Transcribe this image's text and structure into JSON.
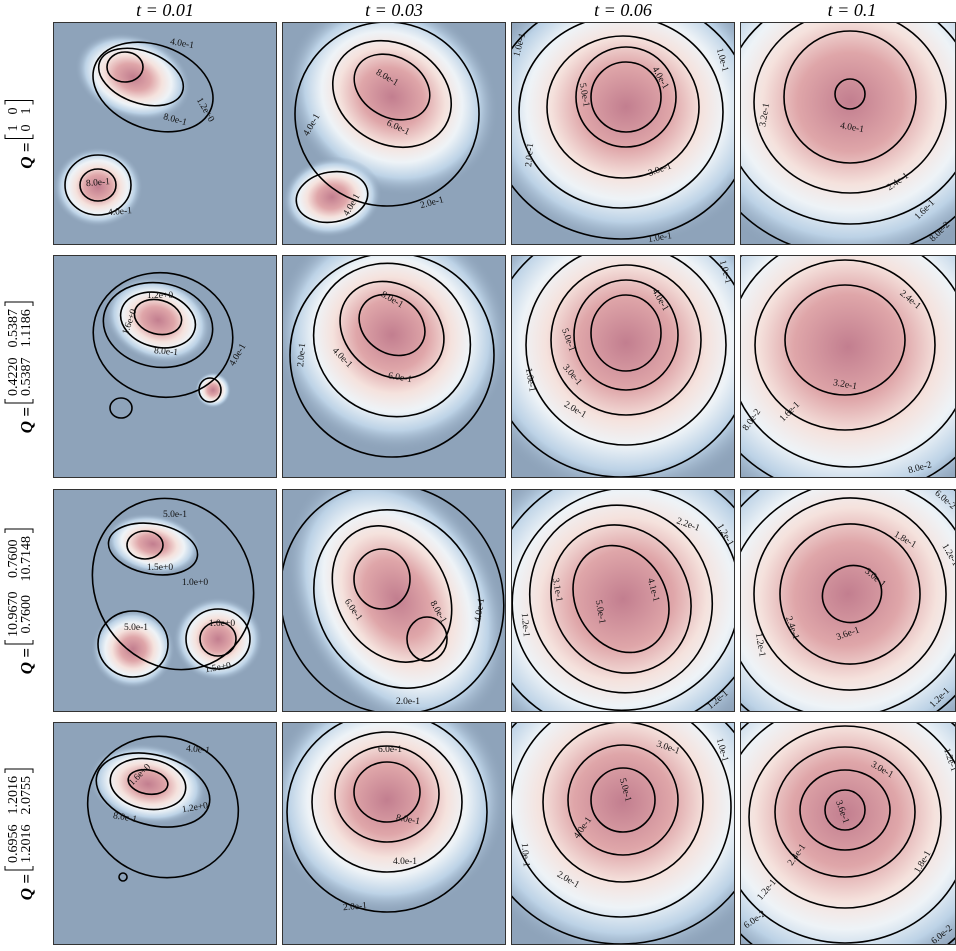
{
  "columns": [
    "t = 0.01",
    "t = 0.03",
    "t = 0.06",
    "t = 0.1"
  ],
  "rows": [
    {
      "label": "Q =",
      "matrix": [
        [
          "1",
          "0"
        ],
        [
          "0",
          "1"
        ]
      ],
      "panels": [
        {
          "contour_labels": [
            "4.0e-1",
            "1.2e+0",
            "8.0e-1",
            "8.0e-1",
            "4.0e-1"
          ]
        },
        {
          "contour_labels": [
            "8.0e-1",
            "6.0e-1",
            "4.0e-1",
            "4.0e-1",
            "2.0e-1"
          ]
        },
        {
          "contour_labels": [
            "1.0e-1",
            "5.0e-1",
            "4.0e-1",
            "2.0e-1",
            "3.0e-1",
            "1.0e-1",
            "1.0e-1"
          ]
        },
        {
          "contour_labels": [
            "3.2e-1",
            "4.0e-1",
            "2.4e-1",
            "1.6e-1",
            "8.0e-2"
          ]
        }
      ]
    },
    {
      "label": "Q =",
      "matrix": [
        [
          "0.4220",
          "0.5387"
        ],
        [
          "0.5387",
          "1.1186"
        ]
      ],
      "panels": [
        {
          "contour_labels": [
            "1.2e+0",
            "1.6e+0",
            "8.0e-1",
            "4.0e-1"
          ]
        },
        {
          "contour_labels": [
            "8.0e-1",
            "2.0e-1",
            "4.0e-1",
            "6.0e-1"
          ]
        },
        {
          "contour_labels": [
            "1.0e-1",
            "4.0e-1",
            "5.0e-1",
            "3.0e-1",
            "1.0e-1",
            "2.0e-1"
          ]
        },
        {
          "contour_labels": [
            "2.4e-1",
            "3.2e-1",
            "1.6e-1",
            "8.0e-2",
            "8.0e-2"
          ]
        }
      ]
    },
    {
      "label": "Q =",
      "matrix": [
        [
          "10.9670",
          "0.7600"
        ],
        [
          "0.7600",
          "10.7148"
        ]
      ],
      "panels": [
        {
          "contour_labels": [
            "5.0e-1",
            "1.5e+0",
            "1.0e+0",
            "5.0e-1",
            "1.0e+0",
            "1.5e+0"
          ]
        },
        {
          "contour_labels": [
            "6.0e-1",
            "8.0e-1",
            "4.0e-1",
            "2.0e-1"
          ]
        },
        {
          "contour_labels": [
            "2.2e-1",
            "1.2e-1",
            "3.1e-1",
            "4.1e-1",
            "5.0e-1",
            "1.2e-1",
            "1.2e-1"
          ]
        },
        {
          "contour_labels": [
            "6.0e-2",
            "1.8e-1",
            "1.2e-1",
            "3.0e-1",
            "2.4e-1",
            "3.6e-1",
            "1.2e-1",
            "1.2e-1"
          ]
        }
      ]
    },
    {
      "label": "Q =",
      "matrix": [
        [
          "0.6956",
          "1.2016"
        ],
        [
          "1.2016",
          "2.0755"
        ]
      ],
      "panels": [
        {
          "contour_labels": [
            "4.0e-1",
            "1.6e+0",
            "1.2e+0",
            "8.0e-1"
          ]
        },
        {
          "contour_labels": [
            "6.0e-1",
            "8.0e-1",
            "4.0e-1",
            "2.0e-1"
          ]
        },
        {
          "contour_labels": [
            "1.0e-1",
            "3.0e-1",
            "5.0e-1",
            "4.0e-1",
            "1.0e-1",
            "2.0e-1"
          ]
        },
        {
          "contour_labels": [
            "1.2e-1",
            "3.0e-1",
            "3.6e-1",
            "2.4e-1",
            "1.8e-1",
            "1.2e-1",
            "6.0e-2",
            "6.0e-2"
          ]
        }
      ]
    }
  ]
}
